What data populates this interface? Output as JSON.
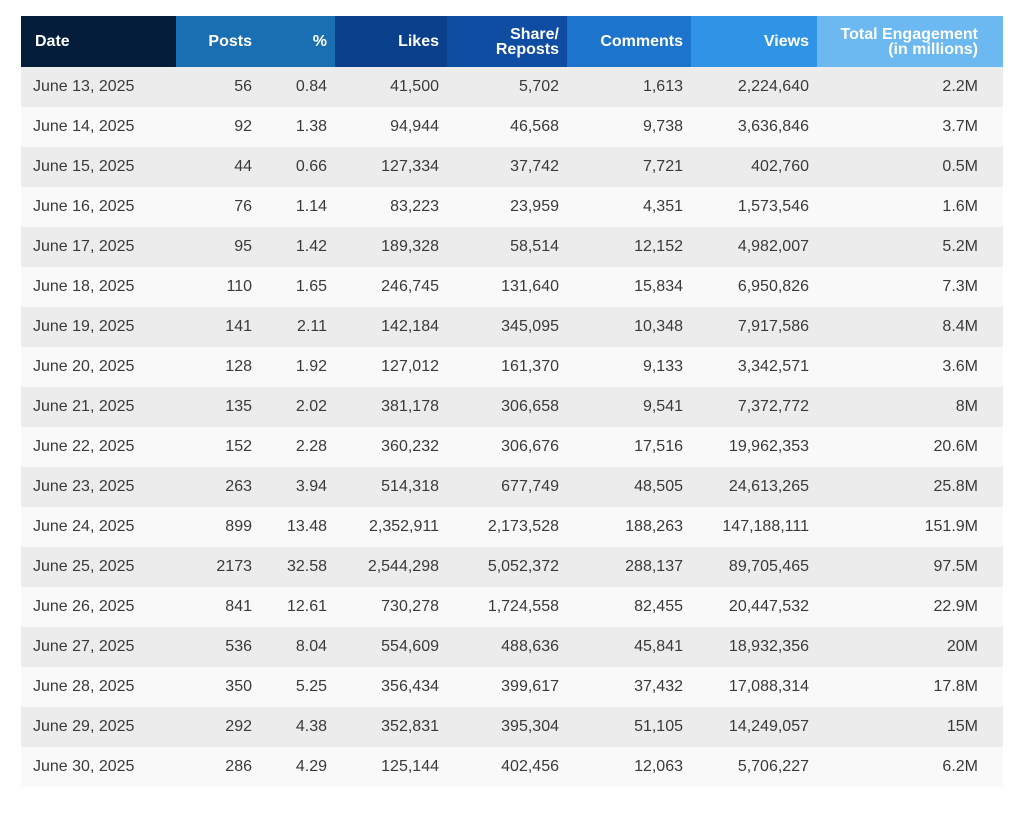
{
  "headers": {
    "date": "Date",
    "posts": "Posts",
    "pct": "%",
    "likes": "Likes",
    "share_line1": "Share/",
    "share_line2": "Reposts",
    "comments": "Comments",
    "views": "Views",
    "total_line1": "Total Engagement",
    "total_line2": "(in millions)"
  },
  "rows": [
    {
      "date": "June 13, 2025",
      "posts": "56",
      "pct": "0.84",
      "likes": "41,500",
      "shares": "5,702",
      "comments": "1,613",
      "views": "2,224,640",
      "total": "2.2M"
    },
    {
      "date": "June 14, 2025",
      "posts": "92",
      "pct": "1.38",
      "likes": "94,944",
      "shares": "46,568",
      "comments": "9,738",
      "views": "3,636,846",
      "total": "3.7M"
    },
    {
      "date": "June 15, 2025",
      "posts": "44",
      "pct": "0.66",
      "likes": "127,334",
      "shares": "37,742",
      "comments": "7,721",
      "views": "402,760",
      "total": "0.5M"
    },
    {
      "date": "June 16, 2025",
      "posts": "76",
      "pct": "1.14",
      "likes": "83,223",
      "shares": "23,959",
      "comments": "4,351",
      "views": "1,573,546",
      "total": "1.6M"
    },
    {
      "date": "June 17, 2025",
      "posts": "95",
      "pct": "1.42",
      "likes": "189,328",
      "shares": "58,514",
      "comments": "12,152",
      "views": "4,982,007",
      "total": "5.2M"
    },
    {
      "date": "June 18, 2025",
      "posts": "110",
      "pct": "1.65",
      "likes": "246,745",
      "shares": "131,640",
      "comments": "15,834",
      "views": "6,950,826",
      "total": "7.3M"
    },
    {
      "date": "June 19, 2025",
      "posts": "141",
      "pct": "2.11",
      "likes": "142,184",
      "shares": "345,095",
      "comments": "10,348",
      "views": "7,917,586",
      "total": "8.4M"
    },
    {
      "date": "June 20, 2025",
      "posts": "128",
      "pct": "1.92",
      "likes": "127,012",
      "shares": "161,370",
      "comments": "9,133",
      "views": "3,342,571",
      "total": "3.6M"
    },
    {
      "date": "June 21, 2025",
      "posts": "135",
      "pct": "2.02",
      "likes": "381,178",
      "shares": "306,658",
      "comments": "9,541",
      "views": "7,372,772",
      "total": "8M"
    },
    {
      "date": "June 22, 2025",
      "posts": "152",
      "pct": "2.28",
      "likes": "360,232",
      "shares": "306,676",
      "comments": "17,516",
      "views": "19,962,353",
      "total": "20.6M"
    },
    {
      "date": "June 23, 2025",
      "posts": "263",
      "pct": "3.94",
      "likes": "514,318",
      "shares": "677,749",
      "comments": "48,505",
      "views": "24,613,265",
      "total": "25.8M"
    },
    {
      "date": "June 24, 2025",
      "posts": "899",
      "pct": "13.48",
      "likes": "2,352,911",
      "shares": "2,173,528",
      "comments": "188,263",
      "views": "147,188,111",
      "total": "151.9M"
    },
    {
      "date": "June 25, 2025",
      "posts": "2173",
      "pct": "32.58",
      "likes": "2,544,298",
      "shares": "5,052,372",
      "comments": "288,137",
      "views": "89,705,465",
      "total": "97.5M"
    },
    {
      "date": "June 26, 2025",
      "posts": "841",
      "pct": "12.61",
      "likes": "730,278",
      "shares": "1,724,558",
      "comments": "82,455",
      "views": "20,447,532",
      "total": "22.9M"
    },
    {
      "date": "June 27, 2025",
      "posts": "536",
      "pct": "8.04",
      "likes": "554,609",
      "shares": "488,636",
      "comments": "45,841",
      "views": "18,932,356",
      "total": "20M"
    },
    {
      "date": "June 28, 2025",
      "posts": "350",
      "pct": "5.25",
      "likes": "356,434",
      "shares": "399,617",
      "comments": "37,432",
      "views": "17,088,314",
      "total": "17.8M"
    },
    {
      "date": "June 29, 2025",
      "posts": "292",
      "pct": "4.38",
      "likes": "352,831",
      "shares": "395,304",
      "comments": "51,105",
      "views": "14,249,057",
      "total": "15M"
    },
    {
      "date": "June 30, 2025",
      "posts": "286",
      "pct": "4.29",
      "likes": "125,144",
      "shares": "402,456",
      "comments": "12,063",
      "views": "5,706,227",
      "total": "6.2M"
    }
  ]
}
